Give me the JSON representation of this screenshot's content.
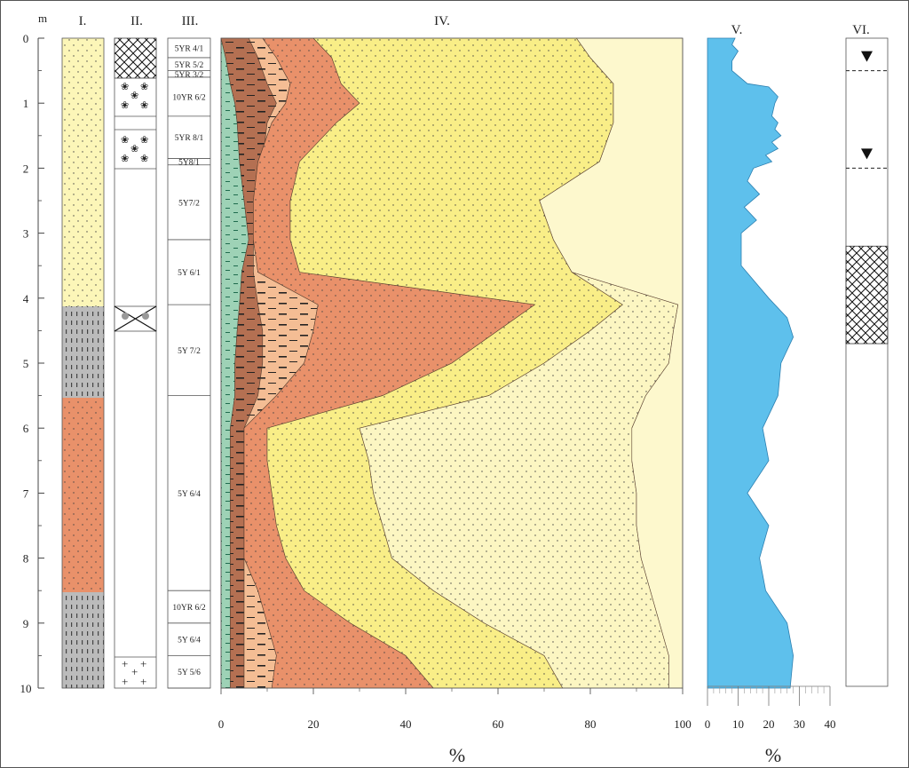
{
  "depth_axis": {
    "unit": "m",
    "ticks": [
      "0",
      "1",
      "2",
      "3",
      "4",
      "5",
      "6",
      "7",
      "8",
      "9",
      "10"
    ]
  },
  "columns": {
    "col1": "I.",
    "col2": "II.",
    "col3": "III.",
    "col4": "IV.",
    "col5": "V.",
    "col6": "VI."
  },
  "colors": {
    "yellow": "#f9ee87",
    "pale_yellow": "#fcf6c2",
    "orange": "#e9916a",
    "light_orange": "#f4bd94",
    "brown": "#b47052",
    "teal": "#9ed2b6",
    "gray": "#bbbbbb",
    "blue": "#5ec0ec"
  },
  "munsell_labels": [
    {
      "text": "5YR 4/1",
      "from": 0,
      "to": 0.3
    },
    {
      "text": "5YR 5/2",
      "from": 0.3,
      "to": 0.5
    },
    {
      "text": "5YR 3/2",
      "from": 0.5,
      "to": 0.6
    },
    {
      "text": "10YR 6/2",
      "from": 0.6,
      "to": 1.2
    },
    {
      "text": "5YR 8/1",
      "from": 1.2,
      "to": 1.85
    },
    {
      "text": "5Y8/1",
      "from": 1.85,
      "to": 1.95
    },
    {
      "text": "5Y7/2",
      "from": 1.95,
      "to": 3.1
    },
    {
      "text": "5Y 6/1",
      "from": 3.1,
      "to": 4.1
    },
    {
      "text": "5Y 7/2",
      "from": 4.1,
      "to": 5.5
    },
    {
      "text": "5Y 6/4",
      "from": 5.5,
      "to": 8.5
    },
    {
      "text": "10YR 6/2",
      "from": 8.5,
      "to": 9.0
    },
    {
      "text": "5Y 6/4",
      "from": 9.0,
      "to": 9.5
    },
    {
      "text": "5Y 5/6",
      "from": 9.5,
      "to": 10.0
    }
  ],
  "chart_data": {
    "type": "area",
    "title": "",
    "depth_unit": "m",
    "depth": [
      0,
      0.3,
      0.7,
      1.0,
      1.3,
      1.9,
      2.5,
      3.1,
      3.6,
      4.1,
      4.5,
      5.0,
      5.5,
      6.0,
      6.5,
      7.0,
      7.5,
      8.0,
      8.5,
      9.0,
      9.5,
      10.0
    ],
    "cumulative_boundaries_percent": {
      "teal_upper": [
        0,
        1,
        2,
        3,
        3.5,
        4,
        5,
        6,
        4.5,
        4,
        3.5,
        3,
        3,
        2,
        2,
        2,
        2,
        2,
        2,
        2,
        2,
        2
      ],
      "brown_upper": [
        6,
        8,
        10,
        12,
        10,
        9,
        8,
        7,
        7,
        8,
        9,
        9,
        8,
        5,
        5,
        5,
        5,
        5,
        5,
        5,
        5,
        5
      ],
      "light_orange_upper": [
        9,
        12,
        15,
        14,
        11,
        8,
        7,
        7,
        8,
        21,
        20,
        18,
        12,
        5,
        5,
        5,
        5,
        5,
        8,
        10,
        12,
        11
      ],
      "orange_upper": [
        20,
        24,
        26,
        30,
        25,
        17,
        15,
        15,
        17,
        68,
        60,
        50,
        35,
        10,
        10,
        11,
        12,
        14,
        18,
        28,
        40,
        46
      ],
      "yellow_upper": [
        77,
        80,
        85,
        85,
        85,
        82,
        69,
        72,
        76,
        87,
        80,
        70,
        58,
        30,
        32,
        33,
        35,
        37,
        46,
        57,
        70,
        74
      ],
      "pale_yellow_upper": [
        77,
        80,
        85,
        85,
        85,
        82,
        69,
        72,
        76,
        99,
        98,
        97,
        92,
        89,
        89,
        90,
        90,
        91,
        93,
        95,
        97,
        97
      ]
    },
    "xlim": [
      0,
      100
    ],
    "xticks": [
      "0",
      "20",
      "40",
      "60",
      "80",
      "100"
    ],
    "xlabel": "%"
  },
  "curve_v": {
    "xticks": [
      "0",
      "10",
      "20",
      "30",
      "40"
    ],
    "xlabel": "%",
    "depth": [
      0,
      0.1,
      0.2,
      0.35,
      0.5,
      0.7,
      0.75,
      0.9,
      1.0,
      1.2,
      1.3,
      1.4,
      1.5,
      1.6,
      1.7,
      1.8,
      1.9,
      2.0,
      2.2,
      2.4,
      2.6,
      2.8,
      3.0,
      3.5,
      4.0,
      4.3,
      4.6,
      5.0,
      5.5,
      6.0,
      6.5,
      7.0,
      7.5,
      8.0,
      8.5,
      9.0,
      9.5,
      10.0
    ],
    "values": [
      9,
      8,
      10,
      8,
      8,
      13,
      20,
      23,
      22,
      21,
      23,
      22,
      24,
      21,
      23,
      19,
      21,
      15,
      13,
      17,
      12,
      16,
      11,
      11,
      20,
      26,
      28,
      24,
      23,
      18,
      20,
      13,
      20,
      17,
      19,
      26,
      28,
      27
    ]
  },
  "column_vi": {
    "markers": [
      0.5,
      2.0
    ],
    "hatched": [
      3.2,
      4.7
    ]
  }
}
